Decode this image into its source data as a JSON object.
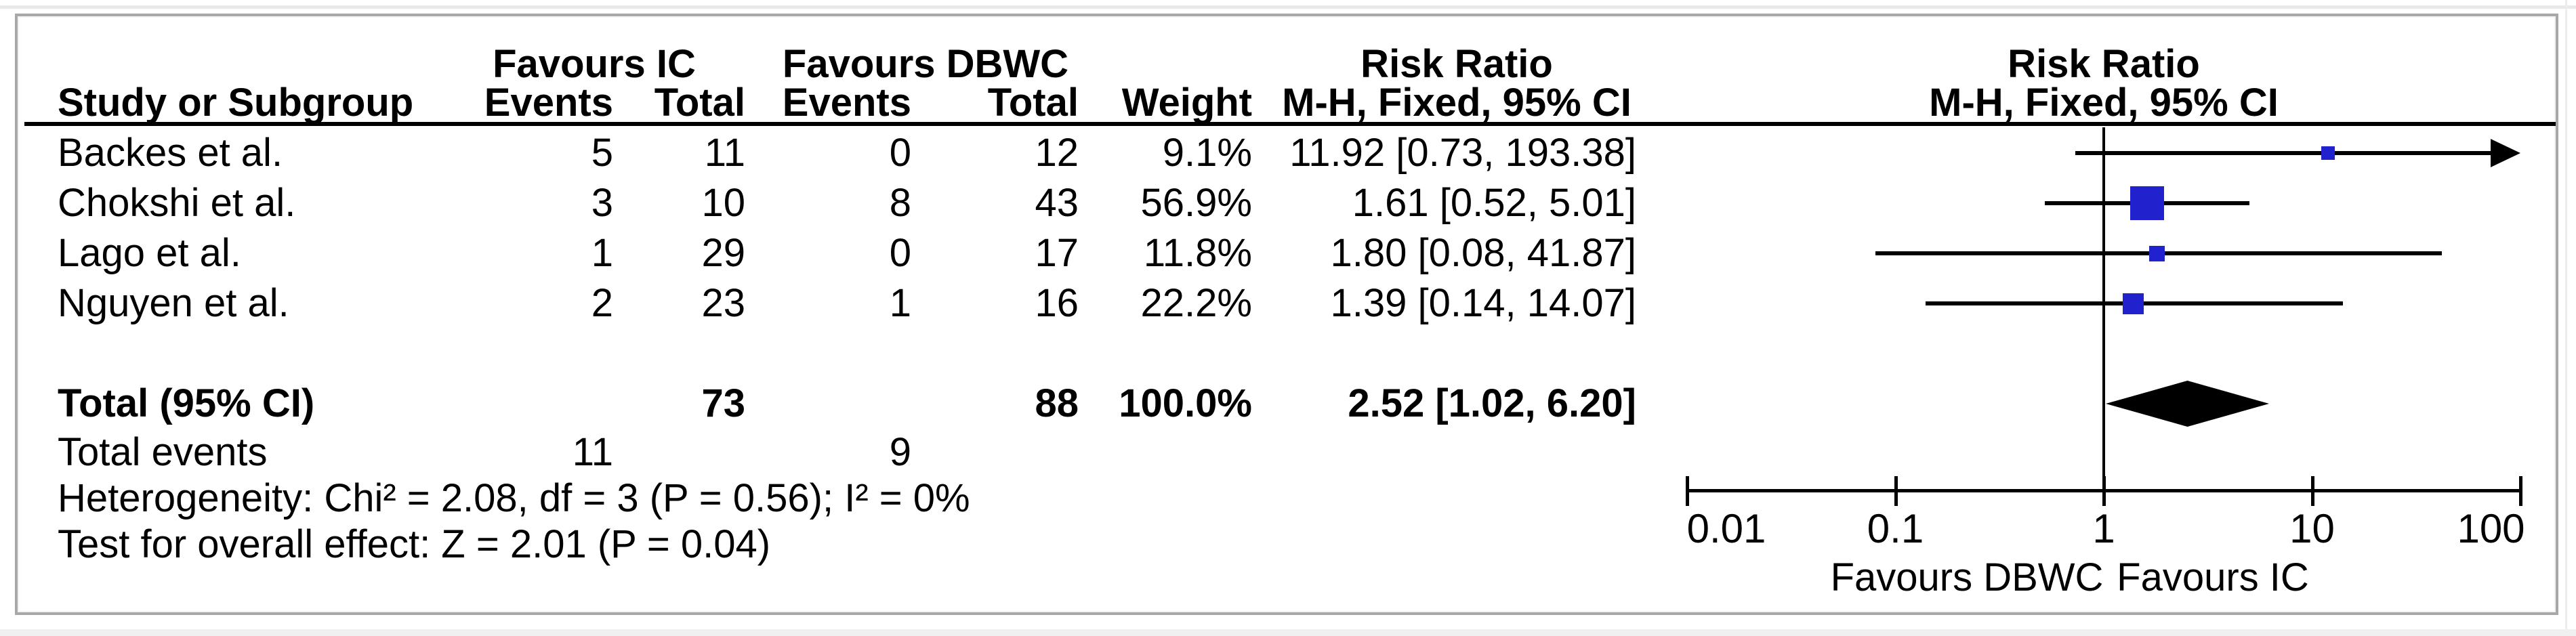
{
  "header": {
    "study_col": "Study or Subgroup",
    "group1_label": "Favours IC",
    "group2_label": "Favours DBWC",
    "events_col": "Events",
    "total_col": "Total",
    "weight_col": "Weight",
    "stat_col_title": "Risk Ratio",
    "stat_col_subtitle": "M-H, Fixed, 95% CI",
    "plot_col_title": "Risk Ratio",
    "plot_col_subtitle": "M-H, Fixed, 95% CI"
  },
  "chart_data": {
    "type": "forest",
    "effect_measure": "Risk Ratio",
    "model": "M-H, Fixed, 95% CI",
    "x_axis": {
      "scale": "log",
      "ticks": [
        "0.01",
        "0.1",
        "1",
        "10",
        "100"
      ],
      "tick_values": [
        0.01,
        0.1,
        1,
        10,
        100
      ],
      "range": [
        0.01,
        100
      ],
      "left_label": "Favours DBWC",
      "right_label": "Favours IC"
    },
    "studies": [
      {
        "name": "Backes et al.",
        "ic_events": 5,
        "ic_total": 11,
        "dbwc_events": 0,
        "dbwc_total": 12,
        "weight": "9.1%",
        "weight_value": 9.1,
        "estimate": 11.92,
        "ci_lower": 0.73,
        "ci_upper": 193.38,
        "ci_label": "11.92 [0.73, 193.38]"
      },
      {
        "name": "Chokshi et al.",
        "ic_events": 3,
        "ic_total": 10,
        "dbwc_events": 8,
        "dbwc_total": 43,
        "weight": "56.9%",
        "weight_value": 56.9,
        "estimate": 1.61,
        "ci_lower": 0.52,
        "ci_upper": 5.01,
        "ci_label": "1.61 [0.52, 5.01]"
      },
      {
        "name": "Lago et al.",
        "ic_events": 1,
        "ic_total": 29,
        "dbwc_events": 0,
        "dbwc_total": 17,
        "weight": "11.8%",
        "weight_value": 11.8,
        "estimate": 1.8,
        "ci_lower": 0.08,
        "ci_upper": 41.87,
        "ci_label": "1.80 [0.08, 41.87]"
      },
      {
        "name": "Nguyen et al.",
        "ic_events": 2,
        "ic_total": 23,
        "dbwc_events": 1,
        "dbwc_total": 16,
        "weight": "22.2%",
        "weight_value": 22.2,
        "estimate": 1.39,
        "ci_lower": 0.14,
        "ci_upper": 14.07,
        "ci_label": "1.39 [0.14, 14.07]"
      }
    ],
    "total": {
      "label": "Total (95% CI)",
      "ic_total": "73",
      "dbwc_total": "88",
      "weight": "100.0%",
      "estimate": 2.52,
      "ci_lower": 1.02,
      "ci_upper": 6.2,
      "ci_label": "2.52 [1.02, 6.20]"
    },
    "total_events": {
      "label": "Total events",
      "ic": "11",
      "dbwc": "9"
    },
    "heterogeneity": "Heterogeneity: Chi² = 2.08, df = 3 (P = 0.56); I² = 0%",
    "overall_effect": "Test for overall effect: Z = 2.01 (P = 0.04)",
    "marker_color": "#2121cd",
    "diamond_color": "#000000",
    "line_color": "#000000"
  }
}
